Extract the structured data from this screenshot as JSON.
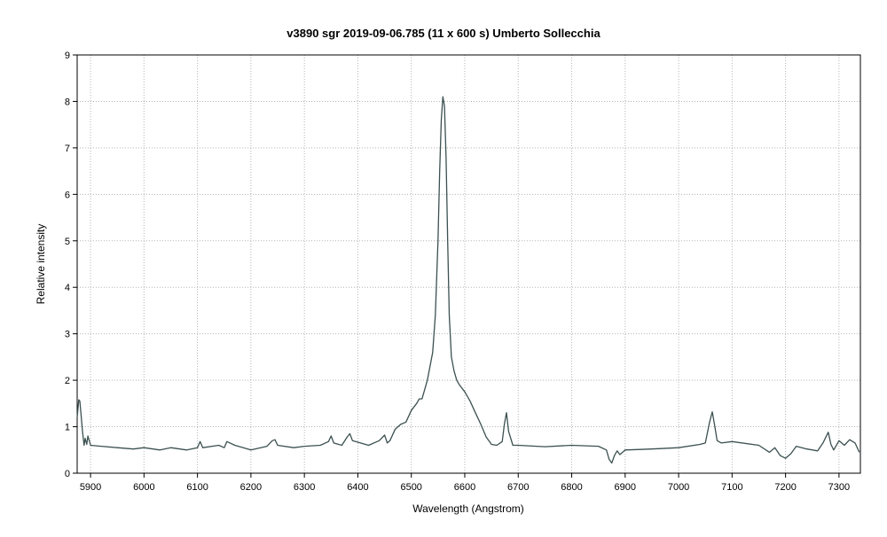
{
  "chart_data": {
    "type": "line",
    "title": "v3890 sgr   2019-09-06.785  (11 x 600 s)   Umberto Sollecchia",
    "xlabel": "Wavelength (Angstrom)",
    "ylabel": "Relative intensity",
    "xlim": [
      5875,
      7340
    ],
    "ylim": [
      0,
      9
    ],
    "x_ticks": [
      5900,
      6000,
      6100,
      6200,
      6300,
      6400,
      6500,
      6600,
      6700,
      6800,
      6900,
      7000,
      7100,
      7200,
      7300
    ],
    "y_ticks": [
      0,
      1,
      2,
      3,
      4,
      5,
      6,
      7,
      8,
      9
    ],
    "grid": true,
    "line_color": "#3c5050",
    "series": [
      {
        "x": [
          5875,
          5878,
          5880,
          5882,
          5885,
          5888,
          5890,
          5893,
          5895,
          5900,
          5920,
          5950,
          5980,
          6000,
          6030,
          6050,
          6080,
          6100,
          6105,
          6110,
          6140,
          6150,
          6155,
          6170,
          6200,
          6230,
          6240,
          6245,
          6250,
          6280,
          6300,
          6330,
          6345,
          6350,
          6355,
          6370,
          6380,
          6385,
          6390,
          6420,
          6440,
          6450,
          6455,
          6460,
          6470,
          6480,
          6490,
          6500,
          6510,
          6515,
          6520,
          6525,
          6530,
          6540,
          6545,
          6550,
          6553,
          6556,
          6559,
          6562,
          6565,
          6568,
          6571,
          6575,
          6580,
          6585,
          6590,
          6600,
          6610,
          6620,
          6630,
          6640,
          6650,
          6660,
          6670,
          6674,
          6678,
          6682,
          6690,
          6700,
          6750,
          6800,
          6850,
          6865,
          6870,
          6875,
          6880,
          6885,
          6890,
          6900,
          6950,
          7000,
          7040,
          7050,
          7058,
          7063,
          7067,
          7072,
          7080,
          7100,
          7150,
          7170,
          7180,
          7190,
          7200,
          7210,
          7220,
          7240,
          7260,
          7270,
          7280,
          7285,
          7290,
          7300,
          7310,
          7320,
          7330,
          7338
        ],
        "y": [
          1.2,
          1.58,
          1.55,
          1.3,
          0.9,
          0.6,
          0.75,
          0.62,
          0.8,
          0.6,
          0.58,
          0.55,
          0.52,
          0.55,
          0.5,
          0.55,
          0.5,
          0.55,
          0.68,
          0.55,
          0.6,
          0.55,
          0.68,
          0.6,
          0.5,
          0.58,
          0.7,
          0.72,
          0.6,
          0.55,
          0.58,
          0.6,
          0.68,
          0.8,
          0.65,
          0.6,
          0.78,
          0.85,
          0.7,
          0.6,
          0.7,
          0.82,
          0.65,
          0.7,
          0.95,
          1.05,
          1.1,
          1.35,
          1.5,
          1.6,
          1.6,
          1.8,
          2.0,
          2.6,
          3.4,
          5.0,
          6.5,
          7.6,
          8.1,
          7.9,
          6.8,
          5.0,
          3.4,
          2.5,
          2.2,
          2.0,
          1.9,
          1.75,
          1.55,
          1.3,
          1.05,
          0.78,
          0.62,
          0.6,
          0.68,
          1.05,
          1.3,
          0.9,
          0.6,
          0.6,
          0.57,
          0.6,
          0.58,
          0.5,
          0.3,
          0.22,
          0.38,
          0.48,
          0.4,
          0.5,
          0.52,
          0.55,
          0.62,
          0.65,
          1.1,
          1.32,
          1.05,
          0.7,
          0.65,
          0.68,
          0.6,
          0.45,
          0.55,
          0.38,
          0.32,
          0.42,
          0.58,
          0.52,
          0.48,
          0.65,
          0.88,
          0.62,
          0.5,
          0.7,
          0.6,
          0.72,
          0.65,
          0.45
        ]
      }
    ]
  }
}
